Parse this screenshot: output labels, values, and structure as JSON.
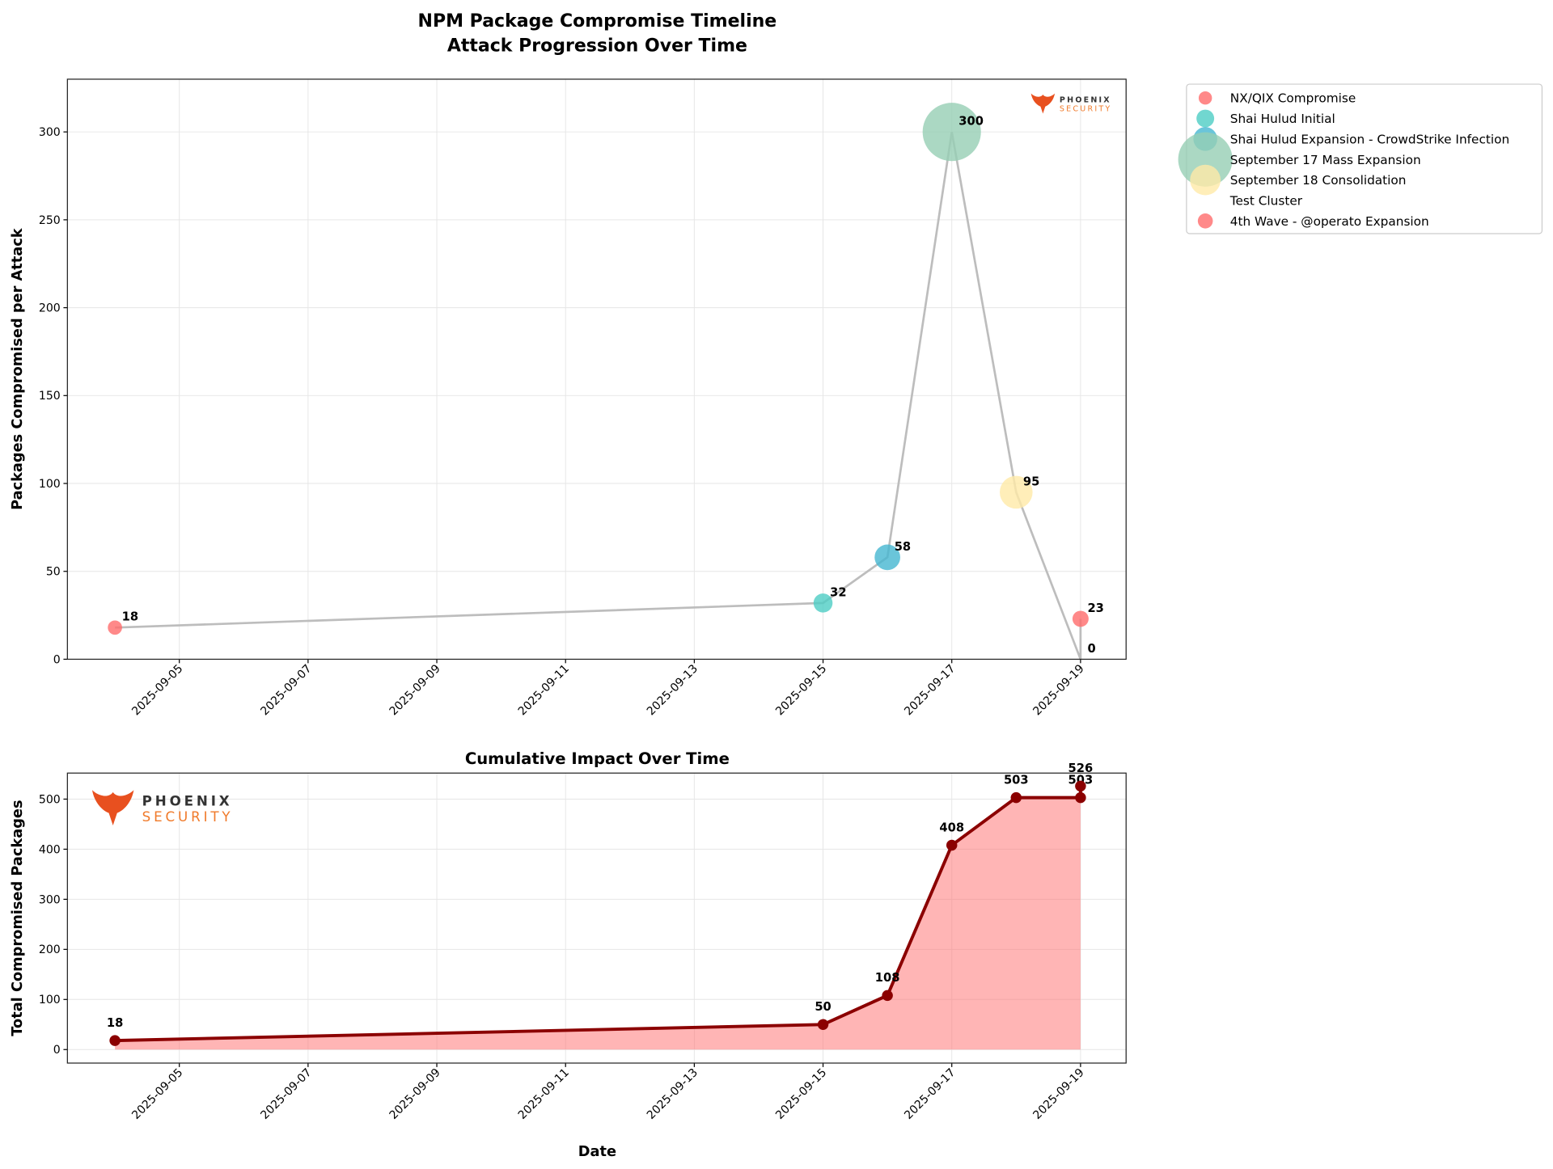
{
  "figure": {
    "title_line1": "NPM Package Compromise Timeline",
    "title_line2": "Attack Progression Over Time",
    "logo_text_top": "PHOENIX",
    "logo_text_bottom": "SECURITY"
  },
  "chart_data": [
    {
      "type": "scatter",
      "title": "NPM Package Compromise Timeline\nAttack Progression Over Time",
      "xlabel": "",
      "ylabel": "Packages Compromised per Attack",
      "xlim": [
        "2025-09-03",
        "2025-09-20"
      ],
      "ylim": [
        0,
        330
      ],
      "grid": true,
      "legend_position": "outside-top-right",
      "x_ticks": [
        "2025-09-05",
        "2025-09-07",
        "2025-09-09",
        "2025-09-11",
        "2025-09-13",
        "2025-09-15",
        "2025-09-17",
        "2025-09-19"
      ],
      "y_ticks": [
        0,
        50,
        100,
        150,
        200,
        250,
        300
      ],
      "connector_color": "#bdbdbd",
      "series": [
        {
          "name": "NX/QIX Compromise",
          "x": "2025-09-04",
          "y": 18,
          "color": "#FF6B6B"
        },
        {
          "name": "Shai Hulud Initial",
          "x": "2025-09-15",
          "y": 32,
          "color": "#4ECDC4"
        },
        {
          "name": "Shai Hulud Expansion - CrowdStrike Infection",
          "x": "2025-09-16",
          "y": 58,
          "color": "#45B7D1"
        },
        {
          "name": "September 17 Mass Expansion",
          "x": "2025-09-17",
          "y": 300,
          "color": "#96CEB4"
        },
        {
          "name": "September 18 Consolidation",
          "x": "2025-09-18",
          "y": 95,
          "color": "#FFEAA7"
        },
        {
          "name": "Test Cluster",
          "x": "2025-09-19",
          "y": 0,
          "color": "#DDA0DD"
        },
        {
          "name": "4th Wave - @operato Expansion",
          "x": "2025-09-19",
          "y": 23,
          "color": "#FF6B6B"
        }
      ]
    },
    {
      "type": "area",
      "title": "Cumulative Impact Over Time",
      "xlabel": "Date",
      "ylabel": "Total Compromised Packages",
      "xlim": [
        "2025-09-03",
        "2025-09-20"
      ],
      "ylim": [
        -27,
        552
      ],
      "grid": true,
      "x_ticks": [
        "2025-09-05",
        "2025-09-07",
        "2025-09-09",
        "2025-09-11",
        "2025-09-13",
        "2025-09-15",
        "2025-09-17",
        "2025-09-19"
      ],
      "y_ticks": [
        0,
        100,
        200,
        300,
        400,
        500
      ],
      "line_color": "#8B0000",
      "fill_color": "#FF6B6B",
      "x": [
        "2025-09-04",
        "2025-09-15",
        "2025-09-16",
        "2025-09-17",
        "2025-09-18",
        "2025-09-19",
        "2025-09-19"
      ],
      "values": [
        18,
        50,
        108,
        408,
        503,
        503,
        526
      ]
    }
  ]
}
